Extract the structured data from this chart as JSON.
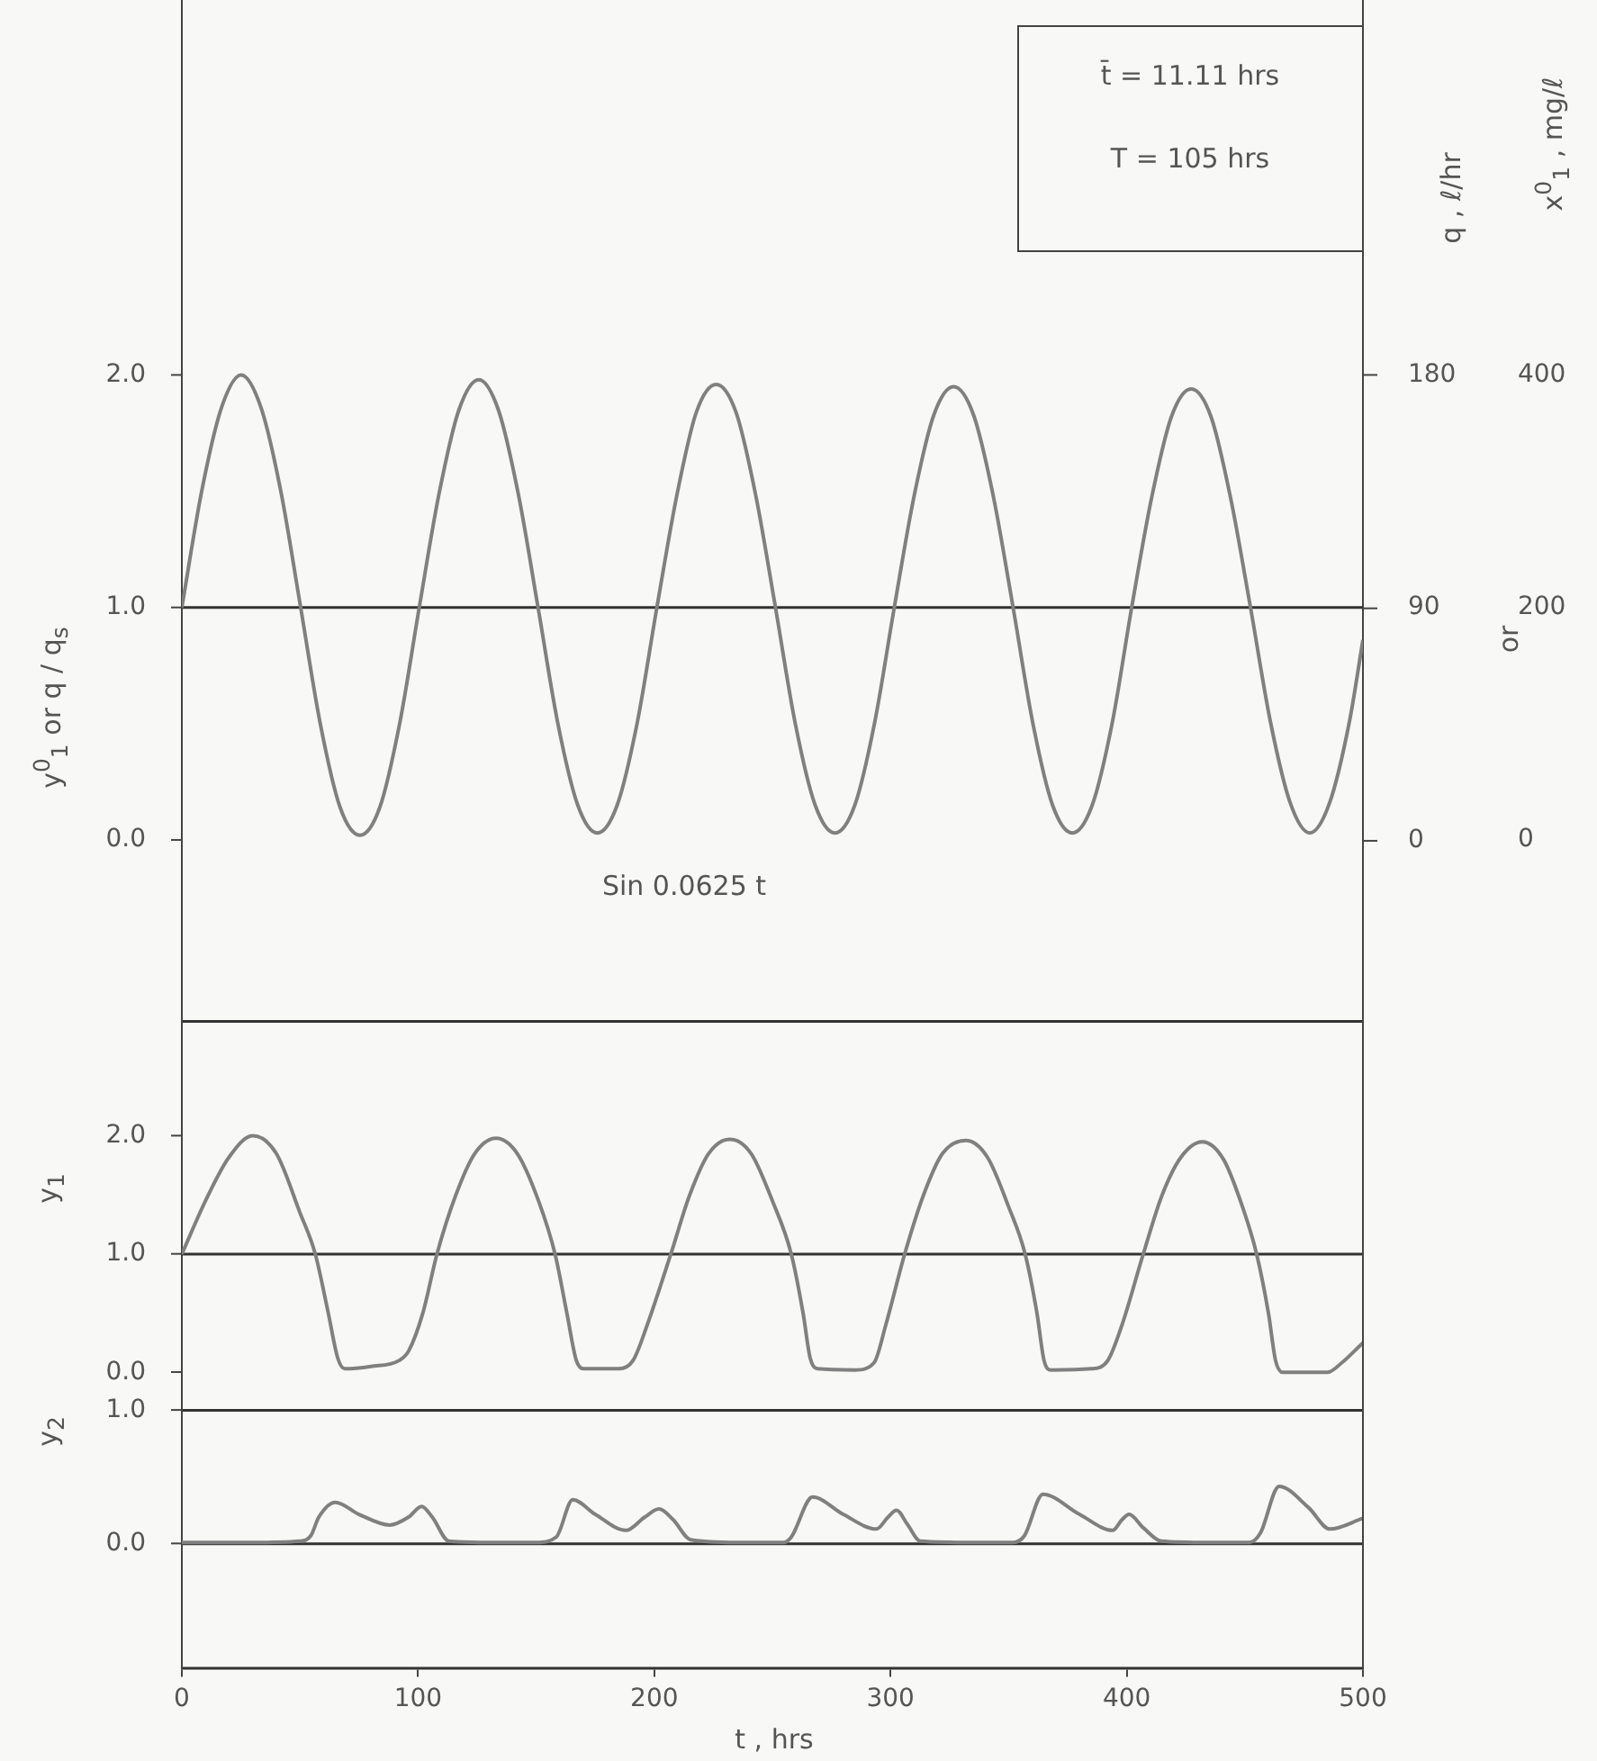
{
  "chart_data": [
    {
      "type": "line",
      "ylabel": "y$^{0}$$_{1}$   or   q / q$_{s}$",
      "y2label": "q , ℓ/hr",
      "y3label": "x$^{0}$$_{1}$ , mg/ℓ",
      "annotations": [
        "t̄ = 11.11 hrs",
        "T = 105 hrs",
        "or",
        "Sin 0.0625 t"
      ],
      "x": [
        0,
        8.4,
        16.8,
        25.1,
        33.5,
        41.9,
        50.3,
        58.6,
        67.0,
        75.4,
        83.8,
        92.2,
        100.5,
        108.9,
        117.3,
        125.7,
        134.0,
        142.4,
        150.8,
        159.2,
        167.6,
        175.9,
        184.3,
        192.7,
        201.1,
        209.5,
        217.8,
        226.2,
        234.6,
        243.0,
        251.3,
        259.7,
        268.1,
        276.5,
        284.9,
        293.2,
        301.6,
        310.0,
        318.4,
        326.7,
        335.1,
        343.5,
        351.9,
        360.3,
        368.6,
        377.0,
        385.4,
        393.8,
        402.1,
        410.5,
        418.9,
        427.3,
        435.7,
        444.0,
        452.4,
        460.8,
        469.2,
        477.5,
        485.9,
        494.3,
        500
      ],
      "series": [
        {
          "color": "#808080",
          "values": [
            1,
            1.5,
            1.86,
            2.0,
            1.86,
            1.5,
            1,
            0.5,
            0.14,
            0.02,
            0.14,
            0.5,
            1,
            1.49,
            1.85,
            1.98,
            1.85,
            1.49,
            1,
            0.5,
            0.15,
            0.03,
            0.15,
            0.5,
            1,
            1.48,
            1.84,
            1.96,
            1.84,
            1.48,
            1,
            0.5,
            0.15,
            0.03,
            0.15,
            0.5,
            1,
            1.48,
            1.83,
            1.95,
            1.83,
            1.48,
            1,
            0.5,
            0.15,
            0.03,
            0.15,
            0.5,
            1,
            1.47,
            1.82,
            1.94,
            1.82,
            1.47,
            1,
            0.51,
            0.16,
            0.03,
            0.16,
            0.51,
            0.86
          ]
        }
      ],
      "xlim": [
        0,
        500
      ],
      "xticks": [
        0,
        100,
        200,
        300,
        400,
        500
      ],
      "ylim": [
        -0.78,
        3.61
      ],
      "yticks": [
        {
          "value": 0,
          "label": "0.0"
        },
        {
          "value": 1,
          "label": "1.0"
        },
        {
          "value": 2,
          "label": "2.0"
        }
      ],
      "y2lim": [
        -70,
        325
      ],
      "y2ticks": [
        0,
        90,
        180
      ],
      "y3lim": [
        -156,
        722
      ],
      "y3ticks": [
        0,
        200,
        400
      ],
      "ref_lines": [
        {
          "axis": "y",
          "value": 1,
          "color": "#333333"
        }
      ],
      "tick_labels": "y",
      "legend": false,
      "grid": false
    },
    {
      "type": "line",
      "ylabel": "y$_{1}$",
      "x": [
        0,
        10,
        20,
        30,
        40,
        50,
        56.5,
        62,
        66,
        69,
        80,
        92,
        96,
        102,
        108,
        116,
        124,
        133,
        142,
        151,
        158,
        163,
        167,
        170,
        185,
        191,
        197,
        207,
        215,
        223,
        232,
        241,
        250,
        258,
        263,
        266,
        269,
        285,
        293,
        298,
        306,
        314,
        322,
        332,
        341,
        350,
        357,
        362,
        365,
        368,
        385,
        392,
        398,
        407,
        415,
        423,
        432,
        441,
        449,
        455,
        460,
        463,
        466,
        485,
        491,
        500
      ],
      "series": [
        {
          "color": "#808080",
          "values": [
            1.0,
            1.45,
            1.82,
            2.0,
            1.85,
            1.35,
            1.0,
            0.5,
            0.12,
            0.03,
            0.05,
            0.1,
            0.18,
            0.5,
            1.0,
            1.5,
            1.85,
            1.98,
            1.85,
            1.45,
            1.0,
            0.5,
            0.1,
            0.03,
            0.03,
            0.1,
            0.4,
            1.0,
            1.5,
            1.85,
            1.97,
            1.85,
            1.45,
            1.0,
            0.5,
            0.12,
            0.03,
            0.02,
            0.08,
            0.4,
            1.0,
            1.5,
            1.85,
            1.96,
            1.82,
            1.4,
            1.0,
            0.5,
            0.1,
            0.02,
            0.03,
            0.1,
            0.4,
            1.0,
            1.5,
            1.82,
            1.95,
            1.8,
            1.4,
            1.0,
            0.5,
            0.1,
            0.0,
            0.0,
            0.08,
            0.25
          ]
        }
      ],
      "xlim": [
        0,
        500
      ],
      "xticks": [
        0,
        100,
        200,
        300,
        400,
        500
      ],
      "ylim": [
        -0.32,
        2.98
      ],
      "yticks": [
        {
          "value": 0,
          "label": "0.0"
        },
        {
          "value": 1,
          "label": "1.0"
        },
        {
          "value": 2,
          "label": "2.0"
        }
      ],
      "ref_lines": [
        {
          "axis": "y",
          "value": 1,
          "color": "#333333"
        }
      ],
      "tick_labels": "y",
      "legend": false,
      "grid": false
    },
    {
      "type": "line",
      "ylabel": "y$_{2}$",
      "xlabel": "t  ,  hrs",
      "x": [
        0,
        30,
        50,
        54.6,
        58,
        65,
        75,
        88,
        96,
        101.5,
        106,
        113,
        130,
        150,
        158.5,
        165.5,
        175,
        188,
        196,
        202,
        208,
        215.4,
        235,
        255,
        258,
        267,
        280,
        294,
        299,
        302.6,
        307,
        312.6,
        335,
        352,
        356.7,
        364.5,
        380,
        394,
        398,
        401,
        407,
        414.6,
        435,
        452,
        456.6,
        464.5,
        477,
        486,
        500
      ],
      "series": [
        {
          "color": "#808080",
          "values": [
            0.01,
            0.01,
            0.02,
            0.06,
            0.2,
            0.31,
            0.22,
            0.14,
            0.2,
            0.28,
            0.2,
            0.02,
            0.01,
            0.01,
            0.05,
            0.33,
            0.22,
            0.1,
            0.2,
            0.26,
            0.18,
            0.03,
            0.01,
            0.01,
            0.05,
            0.35,
            0.22,
            0.11,
            0.2,
            0.25,
            0.15,
            0.02,
            0.01,
            0.01,
            0.06,
            0.37,
            0.22,
            0.1,
            0.18,
            0.22,
            0.12,
            0.02,
            0.01,
            0.01,
            0.08,
            0.43,
            0.27,
            0.11,
            0.19
          ]
        }
      ],
      "xlim": [
        0,
        500
      ],
      "xticks": [
        0,
        100,
        200,
        300,
        400,
        500
      ],
      "ylim": [
        -0.93,
        1.01
      ],
      "yticks": [
        {
          "value": 0,
          "label": "0.0"
        },
        {
          "value": 1,
          "label": "1.0"
        }
      ],
      "ref_lines": [
        {
          "axis": "y",
          "value": 0,
          "color": "#333333"
        }
      ],
      "legend": false,
      "grid": false
    }
  ]
}
